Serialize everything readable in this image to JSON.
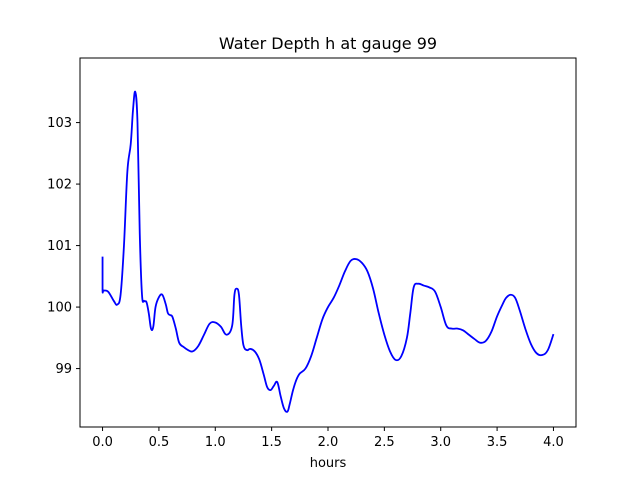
{
  "chart_data": {
    "type": "line",
    "title": "Water Depth h at gauge 99",
    "xlabel": "hours",
    "ylabel": "",
    "xlim": [
      -0.2,
      4.2
    ],
    "ylim": [
      98.05,
      104.05
    ],
    "x_ticks": [
      0.0,
      0.5,
      1.0,
      1.5,
      2.0,
      2.5,
      3.0,
      3.5,
      4.0
    ],
    "x_tick_labels": [
      "0.0",
      "0.5",
      "1.0",
      "1.5",
      "2.0",
      "2.5",
      "3.0",
      "3.5",
      "4.0"
    ],
    "y_ticks": [
      99,
      100,
      101,
      102,
      103
    ],
    "y_tick_labels": [
      "99",
      "100",
      "101",
      "102",
      "103"
    ],
    "grid": false,
    "series": [
      {
        "color": "#0000ff",
        "x": [
          0.0,
          0.0,
          0.01,
          0.05,
          0.1,
          0.13,
          0.16,
          0.19,
          0.22,
          0.25,
          0.27,
          0.29,
          0.31,
          0.33,
          0.35,
          0.37,
          0.39,
          0.41,
          0.43,
          0.45,
          0.47,
          0.5,
          0.53,
          0.56,
          0.58,
          0.6,
          0.62,
          0.65,
          0.68,
          0.72,
          0.76,
          0.8,
          0.85,
          0.9,
          0.95,
          1.0,
          1.05,
          1.1,
          1.15,
          1.17,
          1.19,
          1.21,
          1.23,
          1.25,
          1.28,
          1.31,
          1.35,
          1.39,
          1.43,
          1.46,
          1.49,
          1.52,
          1.55,
          1.58,
          1.61,
          1.64,
          1.66,
          1.69,
          1.72,
          1.75,
          1.8,
          1.85,
          1.9,
          1.95,
          2.0,
          2.05,
          2.1,
          2.15,
          2.2,
          2.25,
          2.3,
          2.35,
          2.4,
          2.45,
          2.5,
          2.55,
          2.6,
          2.65,
          2.7,
          2.73,
          2.76,
          2.8,
          2.85,
          2.9,
          2.95,
          3.0,
          3.05,
          3.1,
          3.15,
          3.2,
          3.25,
          3.3,
          3.35,
          3.4,
          3.45,
          3.5,
          3.55,
          3.58,
          3.62,
          3.66,
          3.7,
          3.75,
          3.8,
          3.85,
          3.9,
          3.95,
          4.0
        ],
        "y": [
          100.82,
          100.28,
          100.27,
          100.25,
          100.1,
          100.04,
          100.2,
          101.0,
          102.2,
          102.65,
          103.2,
          103.5,
          103.0,
          101.2,
          100.2,
          100.1,
          100.08,
          99.9,
          99.65,
          99.68,
          100.0,
          100.16,
          100.2,
          100.05,
          99.9,
          99.87,
          99.84,
          99.65,
          99.42,
          99.35,
          99.3,
          99.28,
          99.37,
          99.55,
          99.73,
          99.75,
          99.68,
          99.55,
          99.7,
          100.2,
          100.3,
          100.2,
          99.7,
          99.38,
          99.3,
          99.32,
          99.28,
          99.15,
          98.9,
          98.7,
          98.65,
          98.72,
          98.78,
          98.55,
          98.35,
          98.3,
          98.42,
          98.65,
          98.82,
          98.92,
          99.0,
          99.2,
          99.5,
          99.8,
          100.0,
          100.15,
          100.35,
          100.58,
          100.75,
          100.78,
          100.72,
          100.58,
          100.3,
          99.9,
          99.55,
          99.28,
          99.14,
          99.2,
          99.5,
          99.9,
          100.32,
          100.38,
          100.35,
          100.32,
          100.25,
          100.0,
          99.7,
          99.65,
          99.65,
          99.62,
          99.55,
          99.48,
          99.42,
          99.45,
          99.6,
          99.85,
          100.05,
          100.15,
          100.2,
          100.15,
          99.95,
          99.65,
          99.4,
          99.25,
          99.22,
          99.3,
          99.56
        ]
      }
    ]
  }
}
